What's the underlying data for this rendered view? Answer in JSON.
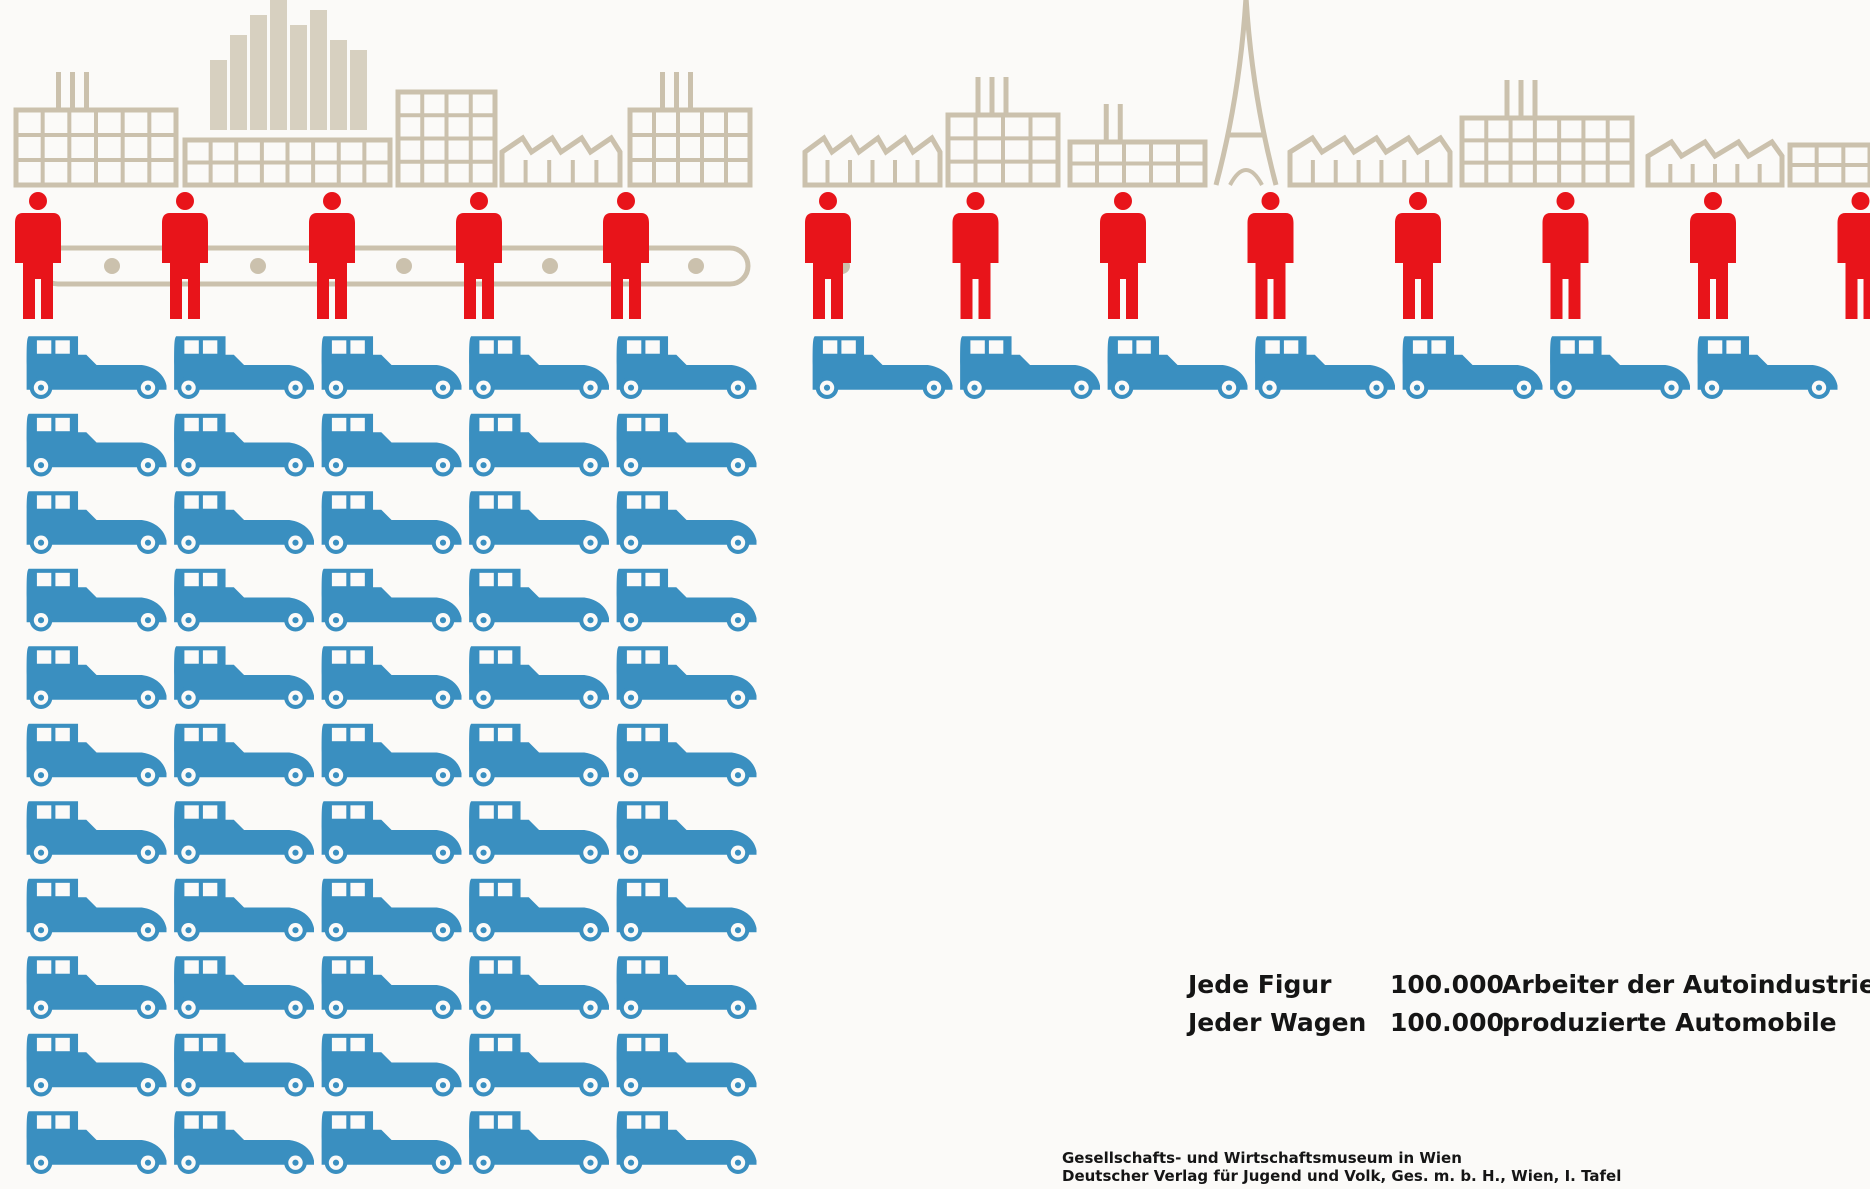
{
  "colors": {
    "skyline": "#cbc1ad",
    "worker": "#e8141a",
    "car": "#3a8fc0",
    "text": "#151515"
  },
  "icons": [
    "factory-skyline-icon",
    "worker-figure-icon",
    "automobile-icon",
    "assembly-belt-icon",
    "eiffel-tower-icon"
  ],
  "chart_data": [
    {
      "type": "isotype",
      "series": [
        {
          "unit": "worker-figure",
          "value": 5
        },
        {
          "unit": "automobile",
          "value": 55
        }
      ]
    },
    {
      "type": "isotype",
      "series": [
        {
          "unit": "worker-figure",
          "value": 8
        },
        {
          "unit": "automobile",
          "value": 7
        }
      ]
    }
  ],
  "legend": [
    {
      "label": "Jede Figur",
      "value": "100.000",
      "text": "Arbeiter der Autoindustrie"
    },
    {
      "label": "Jeder Wagen",
      "value": "100.000",
      "text": "produzierte Automobile"
    }
  ],
  "credits": {
    "line1": "Gesellschafts- und Wirtschaftsmuseum in Wien",
    "line2": "Deutscher Verlag für Jugend und Volk, Ges. m. b. H., Wien, I. Tafel"
  }
}
